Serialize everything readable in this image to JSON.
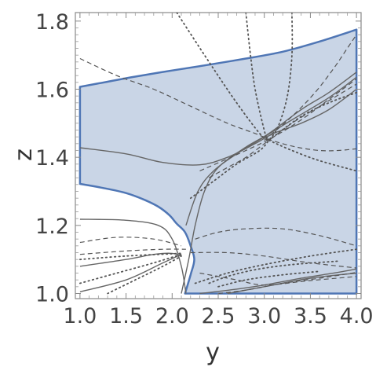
{
  "chart_data": {
    "type": "area",
    "title": "",
    "xlabel": "y",
    "ylabel": "z",
    "xlim": [
      0.95,
      4.05
    ],
    "ylim": [
      0.985,
      1.825
    ],
    "xticks": [
      1.0,
      1.5,
      2.0,
      2.5,
      3.0,
      3.5,
      4.0
    ],
    "xtick_labels": [
      "1.0",
      "1.5",
      "2.0",
      "2.5",
      "3.0",
      "3.5",
      "4.0"
    ],
    "yticks": [
      1.0,
      1.2,
      1.4,
      1.6,
      1.8
    ],
    "ytick_labels": [
      "1.0",
      "1.2",
      "1.4",
      "1.6",
      "1.8"
    ],
    "grid": false,
    "colors": {
      "region_fill": "#c9d5e6",
      "region_stroke": "#4f76b5",
      "solid_line": "#666666",
      "dashed_line": "#555555",
      "dotted_line": "#555555",
      "frame": "#888888"
    },
    "region": {
      "name": "",
      "boundary": [
        [
          1.0,
          1.322
        ],
        [
          1.25,
          1.31
        ],
        [
          1.5,
          1.295
        ],
        [
          1.7,
          1.275
        ],
        [
          1.85,
          1.255
        ],
        [
          1.97,
          1.23
        ],
        [
          2.05,
          1.205
        ],
        [
          2.14,
          1.18
        ],
        [
          2.2,
          1.14
        ],
        [
          2.24,
          1.1
        ],
        [
          2.2,
          1.055
        ],
        [
          2.14,
          1.0
        ],
        [
          4.0,
          1.0
        ],
        [
          4.0,
          1.775
        ],
        [
          3.6,
          1.74
        ],
        [
          3.2,
          1.71
        ],
        [
          2.8,
          1.69
        ],
        [
          2.4,
          1.672
        ],
        [
          2.0,
          1.655
        ],
        [
          1.6,
          1.637
        ],
        [
          1.3,
          1.622
        ],
        [
          1.0,
          1.607
        ]
      ]
    },
    "series": [
      {
        "style": "solid",
        "points": [
          [
            1.0,
            1.428
          ],
          [
            1.5,
            1.41
          ],
          [
            1.9,
            1.385
          ],
          [
            2.3,
            1.378
          ],
          [
            2.6,
            1.4
          ],
          [
            2.9,
            1.44
          ],
          [
            3.1,
            1.47
          ],
          [
            3.4,
            1.5
          ],
          [
            3.7,
            1.54
          ],
          [
            4.0,
            1.6
          ]
        ]
      },
      {
        "style": "solid",
        "points": [
          [
            2.1,
            1.0
          ],
          [
            2.18,
            1.1
          ],
          [
            2.25,
            1.2
          ],
          [
            2.35,
            1.3
          ],
          [
            2.5,
            1.37
          ],
          [
            2.8,
            1.43
          ],
          [
            3.05,
            1.47
          ],
          [
            3.4,
            1.54
          ],
          [
            3.7,
            1.59
          ],
          [
            4.0,
            1.65
          ]
        ]
      },
      {
        "style": "solid",
        "points": [
          [
            2.15,
            1.2
          ],
          [
            2.28,
            1.3
          ],
          [
            2.45,
            1.36
          ],
          [
            2.7,
            1.41
          ],
          [
            3.0,
            1.46
          ],
          [
            3.3,
            1.51
          ],
          [
            3.7,
            1.575
          ],
          [
            4.0,
            1.635
          ]
        ]
      },
      {
        "style": "solid",
        "points": [
          [
            1.0,
            1.218
          ],
          [
            1.5,
            1.215
          ],
          [
            1.85,
            1.2
          ],
          [
            2.0,
            1.16
          ],
          [
            2.1,
            1.08
          ],
          [
            2.15,
            1.0
          ]
        ]
      },
      {
        "style": "solid",
        "points": [
          [
            1.0,
            1.08
          ],
          [
            1.5,
            1.1
          ],
          [
            1.8,
            1.115
          ],
          [
            2.0,
            1.118
          ],
          [
            2.1,
            1.11
          ]
        ]
      },
      {
        "style": "solid",
        "points": [
          [
            1.0,
            1.005
          ],
          [
            1.5,
            1.04
          ],
          [
            1.9,
            1.09
          ],
          [
            2.1,
            1.115
          ]
        ]
      },
      {
        "style": "solid",
        "points": [
          [
            2.3,
            1.0
          ],
          [
            2.7,
            1.013
          ],
          [
            3.0,
            1.025
          ],
          [
            3.4,
            1.045
          ],
          [
            3.8,
            1.062
          ],
          [
            4.0,
            1.072
          ]
        ]
      },
      {
        "style": "solid",
        "points": [
          [
            2.6,
            1.0
          ],
          [
            3.0,
            1.02
          ],
          [
            3.5,
            1.045
          ],
          [
            4.0,
            1.06
          ]
        ]
      },
      {
        "style": "dashed",
        "points": [
          [
            1.0,
            1.69
          ],
          [
            1.4,
            1.64
          ],
          [
            1.8,
            1.6
          ],
          [
            2.2,
            1.55
          ],
          [
            2.6,
            1.5
          ],
          [
            2.9,
            1.47
          ],
          [
            3.1,
            1.448
          ],
          [
            3.35,
            1.43
          ],
          [
            3.6,
            1.42
          ],
          [
            3.8,
            1.42
          ],
          [
            4.0,
            1.425
          ]
        ]
      },
      {
        "style": "dashed",
        "points": [
          [
            2.3,
            1.36
          ],
          [
            2.8,
            1.42
          ],
          [
            3.1,
            1.46
          ],
          [
            3.4,
            1.51
          ],
          [
            3.7,
            1.57
          ],
          [
            4.0,
            1.63
          ]
        ]
      },
      {
        "style": "dashed",
        "points": [
          [
            3.0,
            1.45
          ],
          [
            3.3,
            1.52
          ],
          [
            3.55,
            1.59
          ],
          [
            3.75,
            1.66
          ],
          [
            3.9,
            1.72
          ],
          [
            4.0,
            1.76
          ]
        ]
      },
      {
        "style": "dashed",
        "points": [
          [
            2.4,
            1.34
          ],
          [
            2.6,
            1.37
          ],
          [
            2.8,
            1.4
          ],
          [
            3.05,
            1.45
          ],
          [
            3.3,
            1.5
          ],
          [
            3.6,
            1.55
          ],
          [
            4.0,
            1.615
          ]
        ]
      },
      {
        "style": "dashed",
        "points": [
          [
            1.0,
            1.15
          ],
          [
            1.4,
            1.165
          ],
          [
            1.8,
            1.16
          ],
          [
            2.1,
            1.14
          ]
        ]
      },
      {
        "style": "dashed",
        "points": [
          [
            1.0,
            1.115
          ],
          [
            1.5,
            1.125
          ],
          [
            1.9,
            1.13
          ],
          [
            2.15,
            1.13
          ]
        ]
      },
      {
        "style": "dashed",
        "points": [
          [
            2.25,
            1.16
          ],
          [
            2.5,
            1.18
          ],
          [
            2.8,
            1.19
          ],
          [
            3.2,
            1.19
          ],
          [
            3.6,
            1.17
          ],
          [
            4.0,
            1.14
          ]
        ]
      },
      {
        "style": "dashed",
        "points": [
          [
            2.2,
            1.12
          ],
          [
            2.6,
            1.12
          ],
          [
            3.0,
            1.11
          ],
          [
            3.5,
            1.09
          ],
          [
            4.0,
            1.075
          ]
        ]
      },
      {
        "style": "dashed",
        "points": [
          [
            2.3,
            1.06
          ],
          [
            2.7,
            1.04
          ],
          [
            3.0,
            1.025
          ],
          [
            3.5,
            1.038
          ],
          [
            4.0,
            1.05
          ]
        ]
      },
      {
        "style": "dashed",
        "points": [
          [
            2.5,
            1.0
          ],
          [
            2.8,
            1.01
          ],
          [
            3.2,
            1.03
          ],
          [
            3.6,
            1.045
          ],
          [
            4.0,
            1.062
          ]
        ]
      },
      {
        "style": "dotted",
        "points": [
          [
            1.0,
            1.03
          ],
          [
            1.4,
            1.06
          ],
          [
            1.8,
            1.09
          ],
          [
            2.1,
            1.115
          ]
        ]
      },
      {
        "style": "dotted",
        "points": [
          [
            1.3,
            1.0
          ],
          [
            1.6,
            1.04
          ],
          [
            1.9,
            1.08
          ],
          [
            2.1,
            1.11
          ]
        ]
      },
      {
        "style": "dotted",
        "points": [
          [
            1.0,
            1.1
          ],
          [
            1.5,
            1.11
          ],
          [
            2.1,
            1.118
          ]
        ]
      },
      {
        "style": "dotted",
        "points": [
          [
            2.25,
            1.03
          ],
          [
            2.6,
            1.06
          ],
          [
            3.0,
            1.085
          ],
          [
            3.5,
            1.11
          ],
          [
            4.0,
            1.13
          ]
        ]
      },
      {
        "style": "dotted",
        "points": [
          [
            2.4,
            1.03
          ],
          [
            2.6,
            1.05
          ],
          [
            2.9,
            1.07
          ],
          [
            3.3,
            1.085
          ],
          [
            3.8,
            1.095
          ]
        ]
      },
      {
        "style": "dotted",
        "points": [
          [
            2.5,
            1.02
          ],
          [
            2.8,
            1.04
          ],
          [
            3.2,
            1.055
          ],
          [
            3.6,
            1.065
          ]
        ]
      },
      {
        "style": "dotted",
        "points": [
          [
            2.8,
            1.825
          ],
          [
            2.85,
            1.7
          ],
          [
            2.9,
            1.6
          ],
          [
            2.98,
            1.5
          ],
          [
            3.03,
            1.45
          ]
        ]
      },
      {
        "style": "dotted",
        "points": [
          [
            2.05,
            1.825
          ],
          [
            2.4,
            1.68
          ],
          [
            2.7,
            1.56
          ],
          [
            2.95,
            1.47
          ],
          [
            3.05,
            1.45
          ]
        ]
      },
      {
        "style": "dotted",
        "points": [
          [
            3.3,
            1.825
          ],
          [
            3.3,
            1.7
          ],
          [
            3.25,
            1.58
          ],
          [
            3.15,
            1.49
          ],
          [
            3.05,
            1.45
          ]
        ]
      },
      {
        "style": "dotted",
        "points": [
          [
            3.05,
            1.45
          ],
          [
            3.3,
            1.42
          ],
          [
            3.6,
            1.39
          ],
          [
            4.0,
            1.36
          ]
        ]
      },
      {
        "style": "dotted",
        "points": [
          [
            3.05,
            1.45
          ],
          [
            3.4,
            1.52
          ],
          [
            3.7,
            1.56
          ],
          [
            4.0,
            1.59
          ]
        ]
      },
      {
        "style": "dotted",
        "points": [
          [
            2.2,
            1.28
          ],
          [
            2.45,
            1.33
          ],
          [
            2.7,
            1.38
          ],
          [
            2.95,
            1.42
          ],
          [
            3.05,
            1.45
          ]
        ]
      }
    ]
  }
}
